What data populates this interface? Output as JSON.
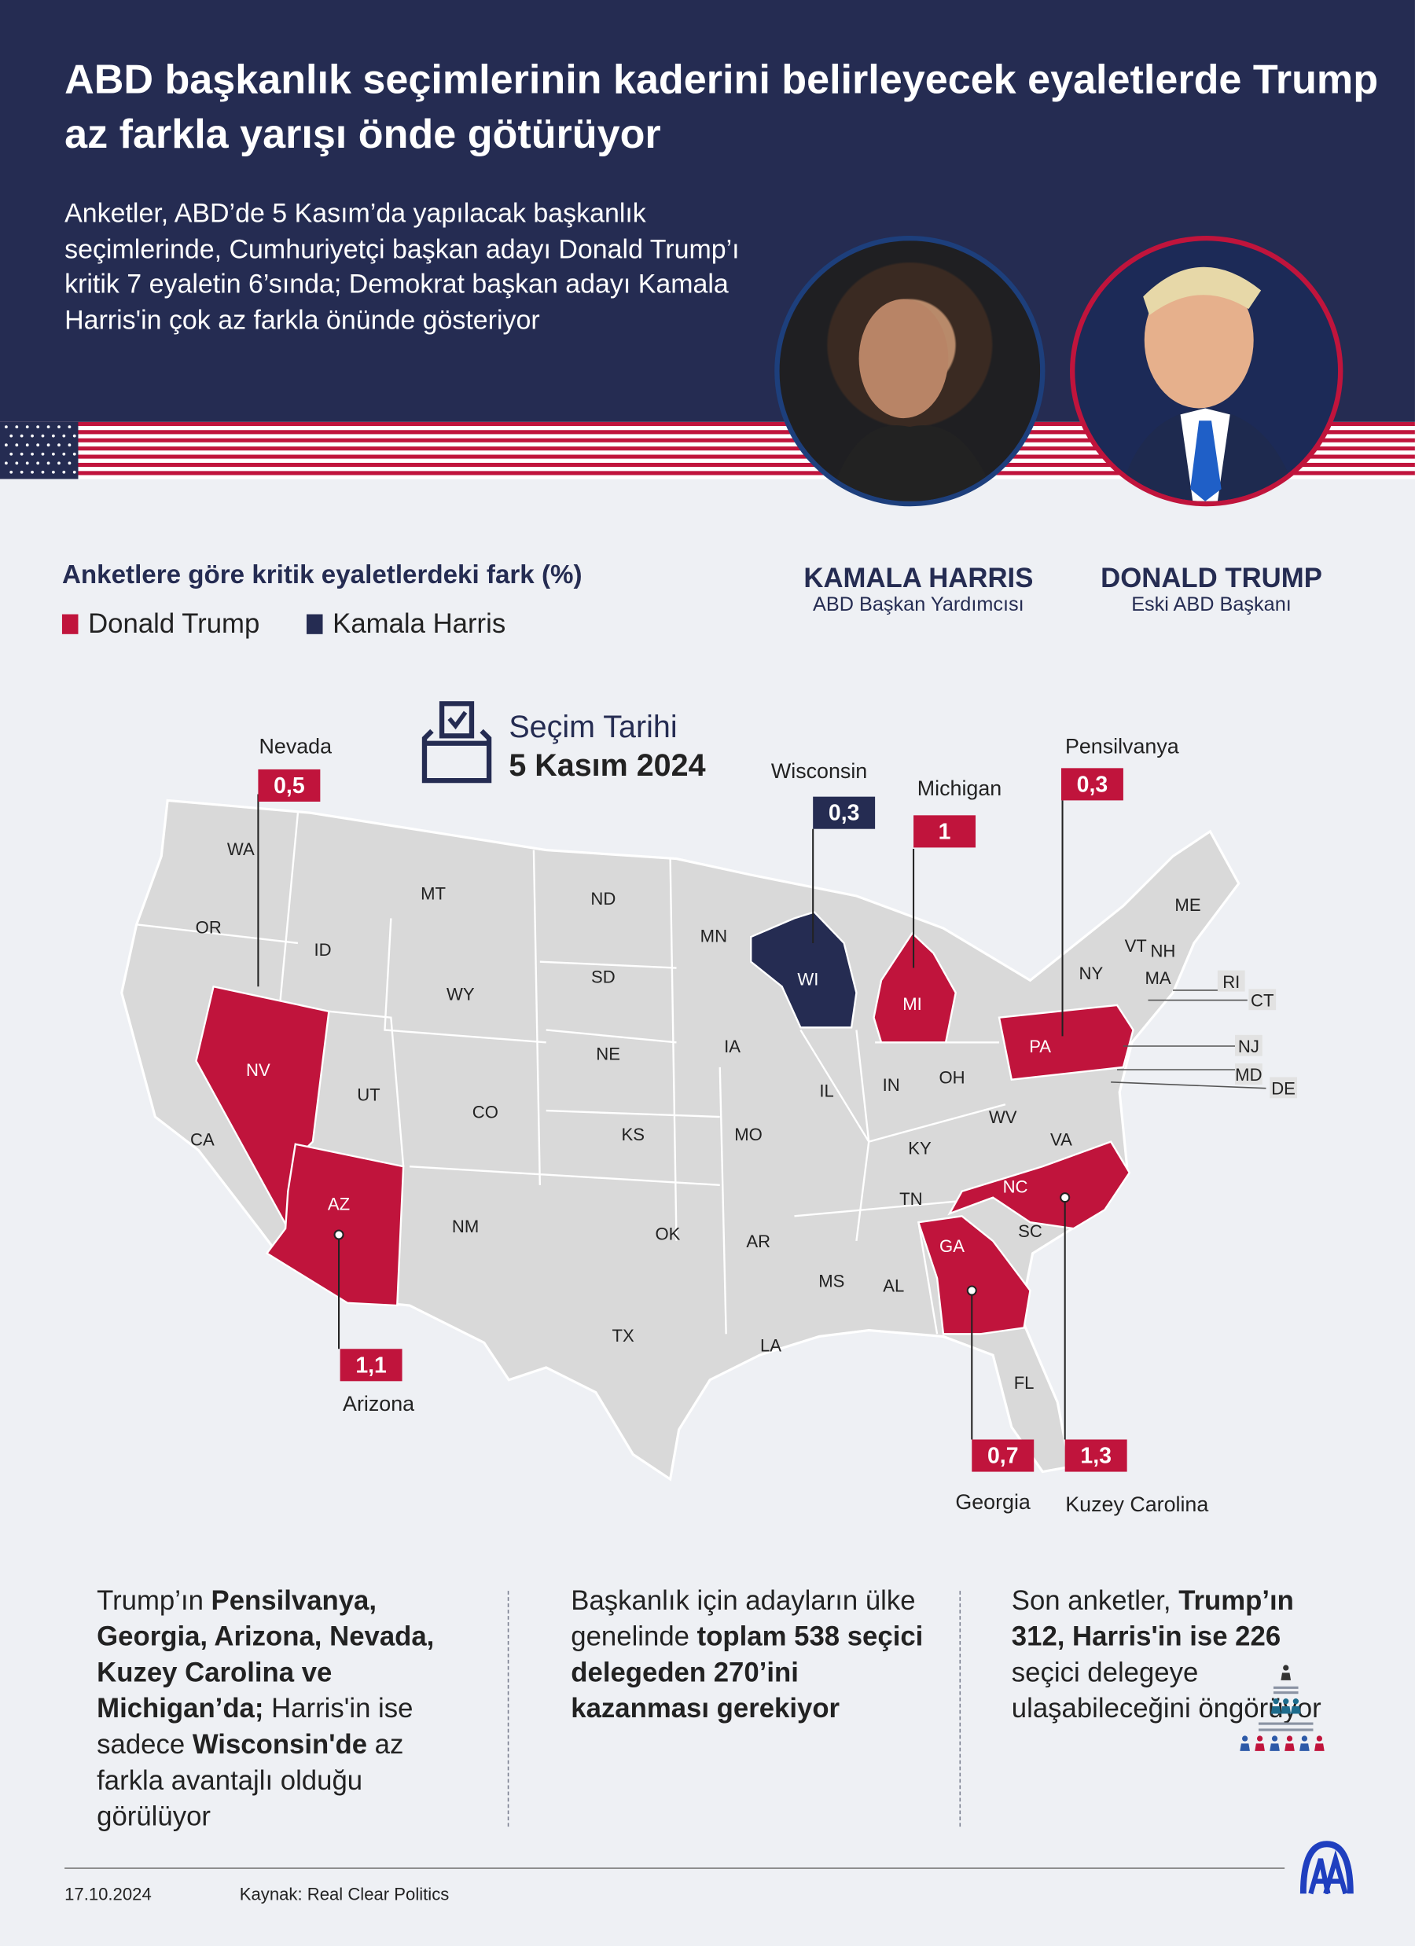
{
  "header": {
    "title": "ABD başkanlık seçimlerinin kaderini belirleyecek eyaletlerde Trump az farkla yarışı önde götürüyor",
    "lead": "Anketler, ABD’de 5 Kasım’da yapılacak başkanlık seçimlerinde, Cumhuriyetçi başkan adayı Donald Trump’ı kritik 7 eyaletin 6’sında; Demokrat başkan adayı Kamala Harris'in çok az farkla önünde gösteriyor"
  },
  "colors": {
    "navy": "#252c52",
    "red": "#c0143c",
    "trump": "#c0143c",
    "harris": "#252c52",
    "state_gray": "#d9d9d9"
  },
  "chart_title": "Anketlere göre kritik eyaletlerdeki fark (%)",
  "legend": [
    {
      "label": "Donald Trump",
      "color": "#c0143c"
    },
    {
      "label": "Kamala Harris",
      "color": "#252c52"
    }
  ],
  "candidates": [
    {
      "name": "KAMALA HARRIS",
      "role": "ABD Başkan Yardımcısı",
      "ring_color": "#1d3f7c"
    },
    {
      "name": "DONALD TRUMP",
      "role": "Eski ABD Başkanı",
      "ring_color": "#c0143c"
    }
  ],
  "election": {
    "label": "Seçim Tarihi",
    "date": "5 Kasım 2024",
    "icon": "ballot-box-icon"
  },
  "battlegrounds": [
    {
      "state": "Nevada",
      "abbr": "NV",
      "margin": "0,5",
      "leader": "Donald Trump"
    },
    {
      "state": "Wisconsin",
      "abbr": "WI",
      "margin": "0,3",
      "leader": "Kamala Harris"
    },
    {
      "state": "Michigan",
      "abbr": "MI",
      "margin": "1",
      "leader": "Donald Trump"
    },
    {
      "state": "Pensilvanya",
      "abbr": "PA",
      "margin": "0,3",
      "leader": "Donald Trump"
    },
    {
      "state": "Arizona",
      "abbr": "AZ",
      "margin": "1,1",
      "leader": "Donald Trump"
    },
    {
      "state": "Georgia",
      "abbr": "GA",
      "margin": "0,7",
      "leader": "Donald Trump"
    },
    {
      "state": "Kuzey Carolina",
      "abbr": "NC",
      "margin": "1,3",
      "leader": "Donald Trump"
    }
  ],
  "state_labels": [
    "WA",
    "OR",
    "CA",
    "ID",
    "MT",
    "WY",
    "UT",
    "CO",
    "NM",
    "ND",
    "SD",
    "NE",
    "KS",
    "OK",
    "TX",
    "MN",
    "IA",
    "MO",
    "AR",
    "LA",
    "IL",
    "IN",
    "OH",
    "KY",
    "TN",
    "MS",
    "AL",
    "FL",
    "SC",
    "VA",
    "WV",
    "NY",
    "VT",
    "NH",
    "ME",
    "MA",
    "RI",
    "CT",
    "NJ",
    "MD",
    "DE"
  ],
  "columns": [
    {
      "parts": [
        [
          "Trump’ın ",
          false
        ],
        [
          "Pensilvanya, Georgia, Arizona, Nevada, Kuzey Carolina ve Michigan’da;",
          true
        ],
        [
          " Harris'in ise sadece ",
          false
        ],
        [
          "Wisconsin'de",
          true
        ],
        [
          " az farkla avantajlı olduğu görülüyor",
          false
        ]
      ]
    },
    {
      "parts": [
        [
          "Başkanlık için adayların ülke genelinde ",
          false
        ],
        [
          "toplam 538 seçici delegeden 270’ini kazanması gerekiyor",
          true
        ]
      ]
    },
    {
      "parts": [
        [
          "Son anketler, ",
          false
        ],
        [
          "Trump’ın 312, Harris'in ise 226",
          true
        ],
        [
          " seçici delegeye ulaşabileceğini öngörüyor",
          false
        ]
      ]
    }
  ],
  "footer": {
    "date": "17.10.2024",
    "source": "Kaynak: Real Clear Politics",
    "logo": "AA"
  }
}
